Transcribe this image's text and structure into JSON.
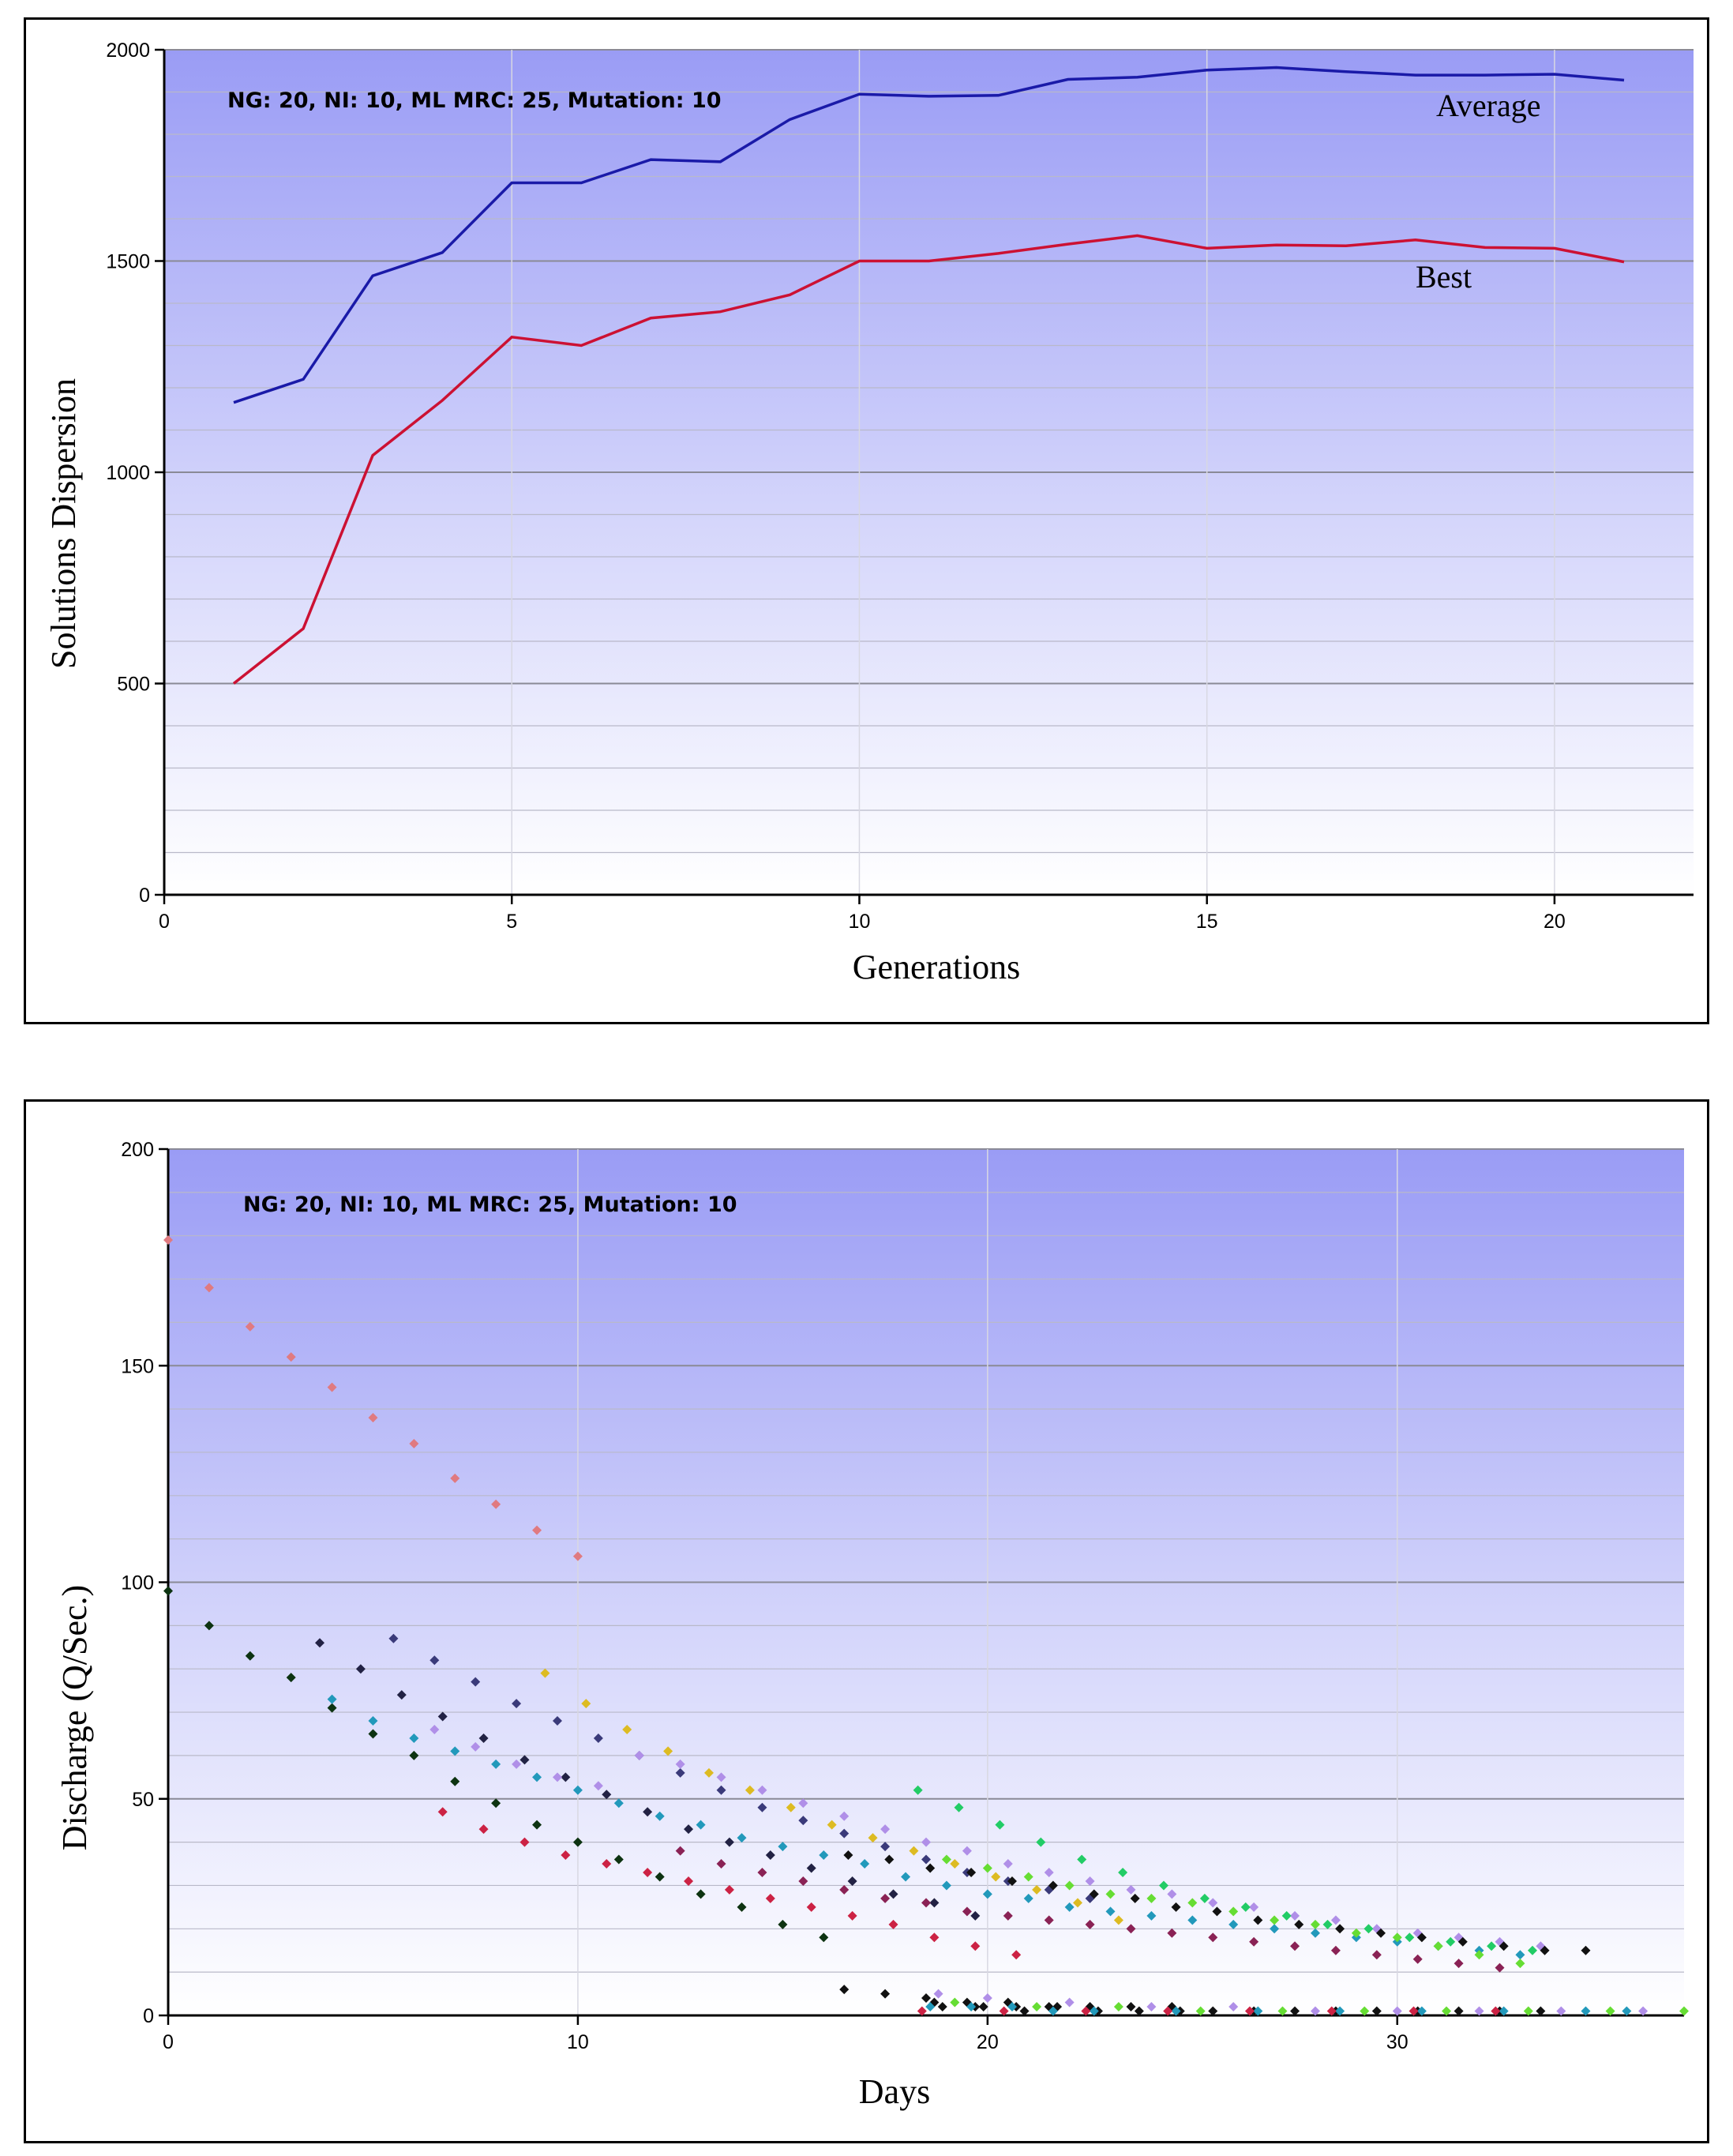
{
  "chart_data": [
    {
      "type": "line",
      "annotation": "NG: 20, NI: 10, ML MRC: 25, Mutation: 10",
      "xlabel": "Generations",
      "ylabel": "Solutions Dispersion",
      "xlim": [
        0,
        22
      ],
      "ylim": [
        0,
        2000
      ],
      "xticks": [
        "0",
        "5",
        "10",
        "15",
        "20"
      ],
      "yticks": [
        "0",
        "500",
        "1000",
        "1500",
        "2000"
      ],
      "grid": true,
      "series": [
        {
          "name": "Average",
          "color": "#1a1aa8",
          "x": [
            1,
            2,
            3,
            4,
            5,
            6,
            7,
            8,
            9,
            10,
            11,
            12,
            13,
            14,
            15,
            16,
            17,
            18,
            19,
            20,
            21
          ],
          "values": [
            1165,
            1220,
            1465,
            1520,
            1685,
            1685,
            1740,
            1735,
            1835,
            1895,
            1890,
            1892,
            1930,
            1935,
            1952,
            1958,
            1948,
            1940,
            1940,
            1942,
            1928
          ]
        },
        {
          "name": "Best",
          "color": "#cc1133",
          "x": [
            1,
            2,
            3,
            4,
            5,
            6,
            7,
            8,
            9,
            10,
            11,
            12,
            13,
            14,
            15,
            16,
            17,
            18,
            19,
            20,
            21
          ],
          "values": [
            500,
            630,
            1040,
            1170,
            1320,
            1300,
            1365,
            1380,
            1420,
            1500,
            1500,
            1518,
            1540,
            1560,
            1530,
            1538,
            1536,
            1550,
            1532,
            1530,
            1498
          ]
        }
      ]
    },
    {
      "type": "scatter",
      "annotation": "NG: 20, NI: 10, ML MRC: 25, Mutation: 10",
      "xlabel": "Days",
      "ylabel": "Discharge (Q/Sec.)",
      "xlim": [
        0,
        37
      ],
      "ylim": [
        0,
        200
      ],
      "xticks": [
        "0",
        "10",
        "20",
        "30"
      ],
      "yticks": [
        "0",
        "50",
        "100",
        "150",
        "200"
      ],
      "grid": true,
      "series": [
        {
          "color": "#e07a80",
          "x": [
            0,
            1,
            2,
            3,
            4,
            5,
            6,
            7,
            8,
            9,
            10
          ],
          "values": [
            179,
            168,
            159,
            152,
            145,
            138,
            132,
            124,
            118,
            112,
            106
          ]
        },
        {
          "color": "#0d3311",
          "x": [
            0,
            1,
            2,
            3,
            4,
            5,
            6,
            7,
            8,
            9,
            10,
            11,
            12,
            13,
            14,
            15,
            16
          ],
          "values": [
            98,
            90,
            83,
            78,
            71,
            65,
            60,
            54,
            49,
            44,
            40,
            36,
            32,
            28,
            25,
            21,
            18
          ]
        },
        {
          "color": "#222244",
          "x": [
            3.7,
            4.7,
            5.7,
            6.7,
            7.7,
            8.7,
            9.7,
            10.7,
            11.7,
            12.7,
            13.7,
            14.7,
            15.7,
            16.7,
            17.7,
            18.7,
            19.7
          ],
          "values": [
            86,
            80,
            74,
            69,
            64,
            59,
            55,
            51,
            47,
            43,
            40,
            37,
            34,
            31,
            28,
            26,
            23
          ]
        },
        {
          "color": "#2299bb",
          "x": [
            4,
            5,
            6,
            7,
            8,
            9,
            10,
            11,
            12,
            13,
            14,
            15,
            16,
            17,
            18,
            19,
            20,
            21,
            22,
            23,
            24,
            25,
            26,
            27,
            28,
            29,
            30,
            31,
            32,
            33
          ],
          "values": [
            73,
            68,
            64,
            61,
            58,
            55,
            52,
            49,
            46,
            44,
            41,
            39,
            37,
            35,
            32,
            30,
            28,
            27,
            25,
            24,
            23,
            22,
            21,
            20,
            19,
            18,
            17,
            16,
            15,
            14
          ]
        },
        {
          "color": "#3a3a7a",
          "x": [
            5.5,
            6.5,
            7.5,
            8.5,
            9.5,
            10.5,
            11.5,
            12.5,
            13.5,
            14.5,
            15.5,
            16.5,
            17.5,
            18.5,
            19.5,
            20.5,
            21.5,
            22.5
          ],
          "values": [
            87,
            82,
            77,
            72,
            68,
            64,
            60,
            56,
            52,
            48,
            45,
            42,
            39,
            36,
            33,
            31,
            29,
            27
          ]
        },
        {
          "color": "#cc2244",
          "x": [
            6.7,
            7.7,
            8.7,
            9.7,
            10.7,
            11.7,
            12.7,
            13.7,
            14.7,
            15.7,
            16.7,
            17.7,
            18.7,
            19.7,
            20.7
          ],
          "values": [
            47,
            43,
            40,
            37,
            35,
            33,
            31,
            29,
            27,
            25,
            23,
            21,
            18,
            16,
            14
          ]
        },
        {
          "color": "#b08fe8",
          "x": [
            6.5,
            7.5,
            8.5,
            9.5,
            10.5,
            11.5,
            12.5,
            13.5,
            14.5,
            15.5,
            16.5,
            17.5,
            18.5,
            19.5,
            20.5,
            21.5,
            22.5,
            23.5,
            24.5,
            25.5,
            26.5,
            27.5,
            28.5,
            29.5,
            30.5,
            31.5,
            32.5,
            33.5
          ],
          "values": [
            66,
            62,
            58,
            55,
            53,
            60,
            58,
            55,
            52,
            49,
            46,
            43,
            40,
            38,
            35,
            33,
            31,
            29,
            28,
            26,
            25,
            23,
            22,
            20,
            19,
            18,
            17,
            16
          ]
        },
        {
          "color": "#ddbb22",
          "x": [
            9.2,
            10.2,
            11.2,
            12.2,
            13.2,
            14.2,
            15.2,
            16.2,
            17.2,
            18.2,
            19.2,
            20.2,
            21.2,
            22.2,
            23.2
          ],
          "values": [
            79,
            72,
            66,
            61,
            56,
            52,
            48,
            44,
            41,
            38,
            35,
            32,
            29,
            26,
            22
          ]
        },
        {
          "color": "#22cc66",
          "x": [
            18.3,
            19.3,
            20.3,
            21.3,
            22.3,
            23.3,
            24.3,
            25.3,
            26.3,
            27.3,
            28.3,
            29.3,
            30.3,
            31.3,
            32.3,
            33.3
          ],
          "values": [
            52,
            48,
            44,
            40,
            36,
            33,
            30,
            27,
            25,
            23,
            21,
            20,
            18,
            17,
            16,
            15
          ]
        },
        {
          "color": "#66dd33",
          "x": [
            19,
            20,
            21,
            22,
            23,
            24,
            25,
            26,
            27,
            28,
            29,
            30,
            31,
            32,
            33
          ],
          "values": [
            36,
            34,
            32,
            30,
            28,
            27,
            26,
            24,
            22,
            21,
            19,
            18,
            16,
            14,
            12
          ]
        },
        {
          "color": "#111111",
          "x": [
            16.6,
            17.6,
            18.6,
            19.6,
            20.6,
            21.6,
            22.6,
            23.6,
            24.6,
            25.6,
            26.6,
            27.6,
            28.6,
            29.6,
            30.6,
            31.6,
            32.6,
            33.6,
            34.6
          ],
          "values": [
            37,
            36,
            34,
            33,
            31,
            30,
            28,
            27,
            25,
            24,
            22,
            21,
            20,
            19,
            18,
            17,
            16,
            15,
            15
          ]
        },
        {
          "color": "#8a2255",
          "x": [
            12.5,
            13.5,
            14.5,
            15.5,
            16.5,
            17.5,
            18.5,
            19.5,
            20.5,
            21.5,
            22.5,
            23.5,
            24.5,
            25.5,
            26.5,
            27.5,
            28.5,
            29.5,
            30.5,
            31.5,
            32.5
          ],
          "values": [
            38,
            35,
            33,
            31,
            29,
            27,
            26,
            24,
            23,
            22,
            21,
            20,
            19,
            18,
            17,
            16,
            15,
            14,
            13,
            12,
            11
          ]
        },
        {
          "color": "#111111",
          "x": [
            16.5,
            17.5
          ],
          "values": [
            6,
            5
          ]
        },
        {
          "color": "#111111",
          "x": [
            18.5,
            18.7,
            18.9,
            19.5,
            19.7,
            19.9,
            20.5,
            20.7,
            20.9,
            21.5,
            21.7,
            22.5,
            22.7,
            23.5,
            23.7,
            24.5,
            24.7,
            25.5,
            26.5,
            27.5,
            28.5,
            29.5,
            30.5,
            31.5,
            32.5,
            33.5
          ],
          "values": [
            4,
            3,
            2,
            3,
            2,
            2,
            3,
            2,
            1,
            2,
            2,
            2,
            1,
            2,
            1,
            2,
            1,
            1,
            1,
            1,
            1,
            1,
            1,
            1,
            1,
            1
          ]
        },
        {
          "color": "#2299bb",
          "x": [
            18.6,
            19.6,
            20.6,
            21.6,
            22.6,
            24.6,
            26.6,
            28.6,
            30.6,
            32.6,
            34.6,
            35.6
          ],
          "values": [
            2,
            2,
            2,
            1,
            1,
            1,
            1,
            1,
            1,
            1,
            1,
            1
          ]
        },
        {
          "color": "#b08fe8",
          "x": [
            18.8,
            20,
            22,
            24,
            26,
            28,
            30,
            32,
            34,
            36
          ],
          "values": [
            5,
            4,
            3,
            2,
            2,
            1,
            1,
            1,
            1,
            1
          ]
        },
        {
          "color": "#66dd33",
          "x": [
            19.2,
            21.2,
            23.2,
            25.2,
            27.2,
            29.2,
            31.2,
            33.2,
            35.2,
            37
          ],
          "values": [
            3,
            2,
            2,
            1,
            1,
            1,
            1,
            1,
            1,
            1
          ]
        },
        {
          "color": "#cc2244",
          "x": [
            18.4,
            20.4,
            22.4,
            24.4,
            26.4,
            28.4,
            30.4,
            32.4
          ],
          "values": [
            1,
            1,
            1,
            1,
            1,
            1,
            1,
            1
          ]
        }
      ]
    }
  ],
  "labels": {
    "average": "Average",
    "best": "Best"
  }
}
